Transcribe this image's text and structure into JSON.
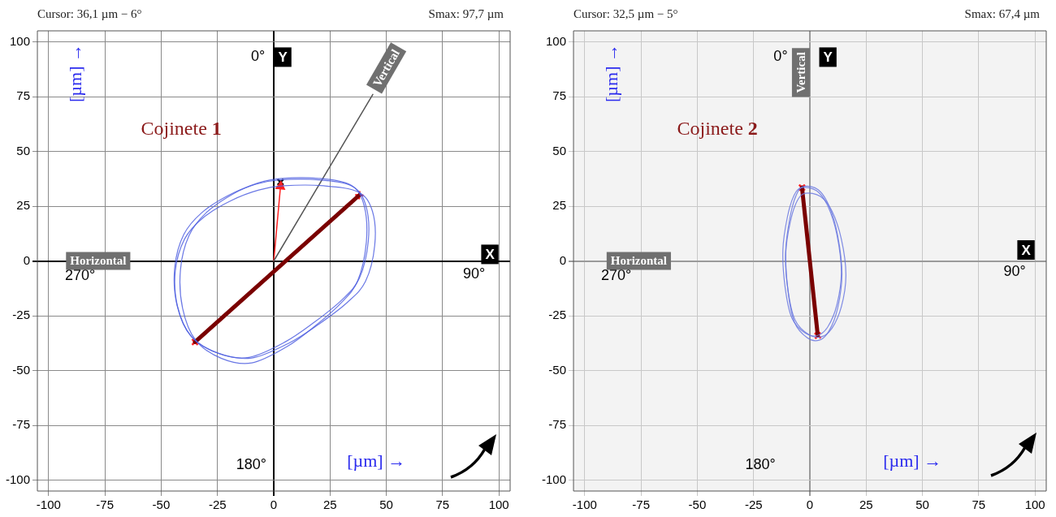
{
  "chart_data": [
    {
      "type": "line",
      "title": "Cojinete 1",
      "xlabel": "[µm] →",
      "ylabel": "[µm] →",
      "annotations": [
        "Cursor: 36,1 µm − 6°",
        "Smax: 97,7 µm",
        "0°",
        "Y",
        "90°",
        "X",
        "180°",
        "270°",
        "Horizontal",
        "Vertical"
      ],
      "xlim": [
        -105,
        105
      ],
      "ylim": [
        -105,
        105
      ],
      "xticks": [
        -100,
        -75,
        -50,
        -25,
        0,
        25,
        50,
        75,
        100
      ],
      "yticks": [
        -100,
        -75,
        -50,
        -25,
        0,
        25,
        50,
        75,
        100
      ],
      "grid": true,
      "marker": "none",
      "series": [
        {
          "color": "#555555",
          "x": [
            0,
            44
          ],
          "values": [
            0,
            76
          ]
        },
        {
          "color": "#7a0000",
          "x": [
            -35,
            38
          ],
          "values": [
            -37,
            30
          ]
        },
        {
          "color": "#ff2020",
          "marker": "triangle",
          "x": [
            0,
            3
          ],
          "values": [
            0,
            34
          ]
        },
        {
          "type": "scatter",
          "color": "#ff2020",
          "marker": "cross",
          "x": [
            -35,
            38
          ],
          "values": [
            -37,
            30
          ]
        },
        {
          "type": "scatter",
          "color": "#000000",
          "marker": "cross",
          "x": [
            3
          ],
          "values": [
            36
          ]
        }
      ]
    },
    {
      "type": "line",
      "title": "Cojinete 2",
      "xlabel": "[µm] →",
      "ylabel": "[µm] →",
      "annotations": [
        "Cursor: 32,5 µm − 5°",
        "Smax: 67,4 µm",
        "0°",
        "Y",
        "90°",
        "X",
        "180°",
        "270°",
        "Horizontal",
        "Vertical"
      ],
      "xlim": [
        -105,
        105
      ],
      "ylim": [
        -105,
        105
      ],
      "xticks": [
        -100,
        -75,
        -50,
        -25,
        0,
        25,
        50,
        75,
        100
      ],
      "yticks": [
        -100,
        -75,
        -50,
        -25,
        0,
        25,
        50,
        75,
        100
      ],
      "grid": true,
      "marker": "none",
      "series": [
        {
          "color": "#7a0000",
          "x": [
            -3.5,
            3.5
          ],
          "values": [
            33.5,
            -34
          ]
        },
        {
          "type": "scatter",
          "color": "#ff2020",
          "marker": "cross",
          "x": [
            -3.5,
            3.5
          ],
          "values": [
            33.5,
            -34
          ]
        }
      ]
    }
  ]
}
